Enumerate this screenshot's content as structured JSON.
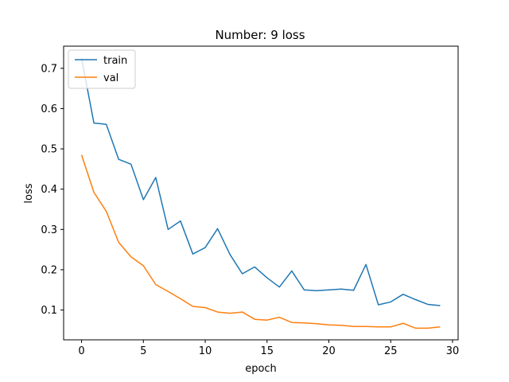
{
  "chart_data": {
    "type": "line",
    "title": "Number: 9 loss",
    "xlabel": "epoch",
    "ylabel": "loss",
    "xlim": [
      -1.45,
      30.45
    ],
    "ylim": [
      0.026,
      0.755
    ],
    "xticks": [
      0,
      5,
      10,
      15,
      20,
      25,
      30
    ],
    "yticks": [
      0.1,
      0.2,
      0.3,
      0.4,
      0.5,
      0.6,
      0.7
    ],
    "grid": false,
    "legend_position": "top-left",
    "x": [
      0,
      1,
      2,
      3,
      4,
      5,
      6,
      7,
      8,
      9,
      10,
      11,
      12,
      13,
      14,
      15,
      16,
      17,
      18,
      19,
      20,
      21,
      22,
      23,
      24,
      25,
      26,
      27,
      28,
      29
    ],
    "series": [
      {
        "name": "train",
        "color": "#1f77b4",
        "values": [
          0.725,
          0.564,
          0.561,
          0.474,
          0.462,
          0.374,
          0.429,
          0.3,
          0.321,
          0.239,
          0.255,
          0.302,
          0.238,
          0.19,
          0.207,
          0.18,
          0.157,
          0.197,
          0.15,
          0.148,
          0.15,
          0.152,
          0.149,
          0.213,
          0.113,
          0.12,
          0.139,
          0.126,
          0.114,
          0.111
        ]
      },
      {
        "name": "val",
        "color": "#ff7f0e",
        "values": [
          0.485,
          0.392,
          0.345,
          0.268,
          0.232,
          0.21,
          0.163,
          0.146,
          0.128,
          0.109,
          0.106,
          0.095,
          0.092,
          0.095,
          0.077,
          0.075,
          0.082,
          0.069,
          0.068,
          0.066,
          0.063,
          0.062,
          0.059,
          0.059,
          0.058,
          0.058,
          0.067,
          0.055,
          0.055,
          0.058
        ]
      }
    ]
  }
}
